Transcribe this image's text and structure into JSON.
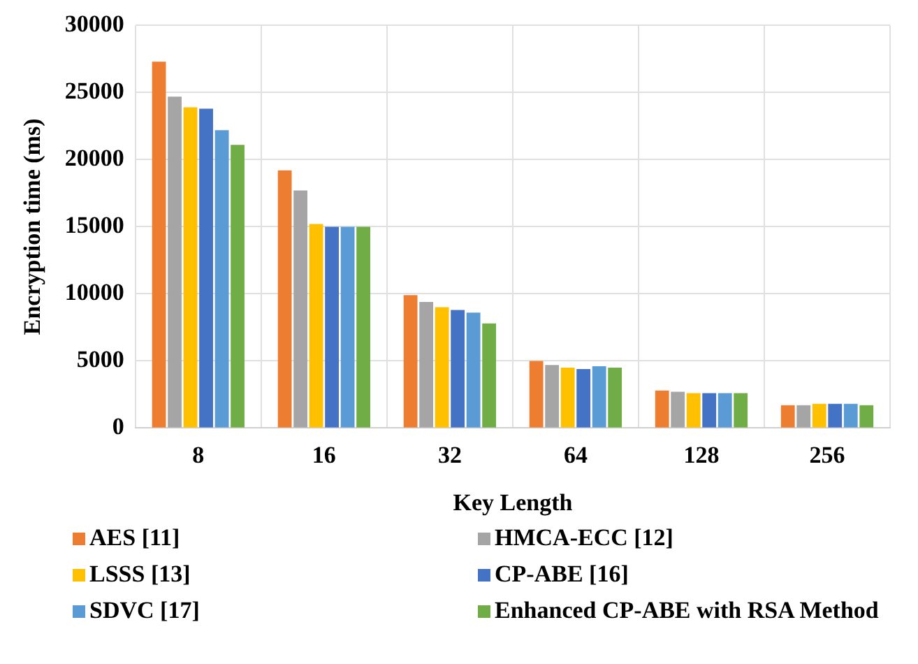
{
  "chart_data": {
    "type": "bar",
    "xlabel": "Key Length",
    "ylabel": "Encryption time (ms)",
    "categories": [
      "8",
      "16",
      "32",
      "64",
      "128",
      "256"
    ],
    "series": [
      {
        "name": "AES [11]",
        "color": "#ed7d31",
        "values": [
          27300,
          19200,
          9900,
          5000,
          2800,
          1700
        ]
      },
      {
        "name": "HMCA-ECC [12]",
        "color": "#a5a5a5",
        "values": [
          24700,
          17700,
          9400,
          4700,
          2700,
          1700
        ]
      },
      {
        "name": "LSSS [13]",
        "color": "#ffc000",
        "values": [
          23900,
          15200,
          9000,
          4500,
          2600,
          1800
        ]
      },
      {
        "name": "CP-ABE [16]",
        "color": "#4472c4",
        "values": [
          23800,
          15000,
          8800,
          4400,
          2600,
          1800
        ]
      },
      {
        "name": "SDVC [17]",
        "color": "#5b9bd5",
        "values": [
          22200,
          15000,
          8600,
          4600,
          2600,
          1800
        ]
      },
      {
        "name": "Enhanced CP-ABE with RSA Method",
        "color": "#70ad47",
        "values": [
          21100,
          15000,
          7800,
          4500,
          2600,
          1700
        ]
      }
    ],
    "ylim": [
      0,
      30000
    ],
    "yticks": [
      0,
      5000,
      10000,
      15000,
      20000,
      25000,
      30000
    ],
    "grid": true,
    "legend": "bottom"
  }
}
